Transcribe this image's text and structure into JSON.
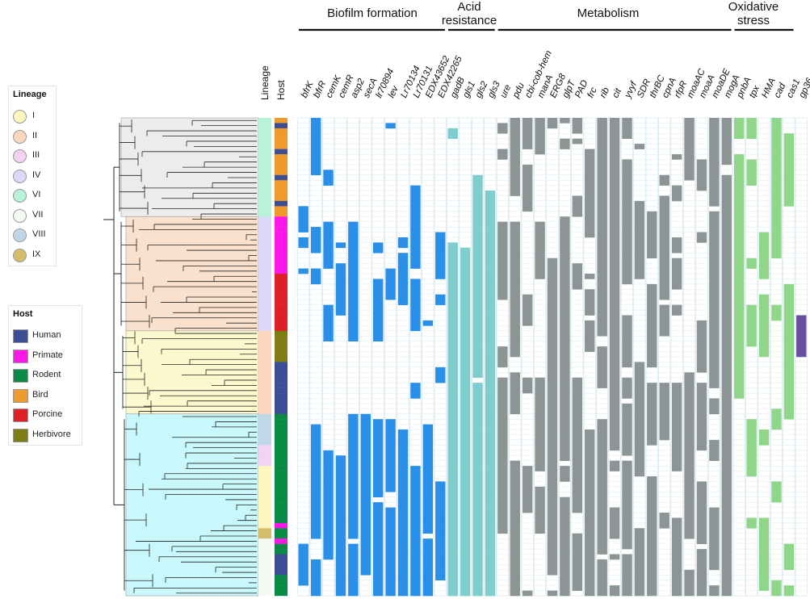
{
  "categories": [
    {
      "label": "Biofilm formation",
      "genes": [
        "bfrK",
        "bfrR",
        "cemK",
        "cemR",
        "asp2",
        "secA",
        "lr70894",
        "lev",
        "Lr70134",
        "Lr70131",
        "EDX43652",
        "EDX42265"
      ],
      "color": "#2a8fe8"
    },
    {
      "label": "Acid resistance",
      "genes": [
        "gadB",
        "gls1",
        "gls2",
        "gls3"
      ],
      "color": "#7fcdcc"
    },
    {
      "label": "Metabolism",
      "genes": [
        "ure",
        "pdu",
        "cbi-cob-hem",
        "manA",
        "ERG8",
        "glpT",
        "PAD",
        "frc",
        "rib",
        "cit",
        "yvyf",
        "SDR",
        "thrBC",
        "cpnA",
        "rfpR",
        "moaAC",
        "moaA",
        "moaDE",
        "mogA"
      ],
      "color": "#8c9594"
    },
    {
      "label": "Oxidative stress",
      "genes": [
        "pnbA",
        "tpx",
        "HMA",
        "cad",
        "cas1"
      ],
      "color": "#8fd68a"
    },
    {
      "label": "",
      "genes": [
        "gp36"
      ],
      "color": "#6a4f9e"
    }
  ],
  "column_headers": {
    "lineage": "Lineage",
    "host": "Host"
  },
  "legends": {
    "lineage": {
      "title": "Lineage",
      "items": [
        {
          "label": "I",
          "color": "#fdf6c0"
        },
        {
          "label": "II",
          "color": "#fbd6bd"
        },
        {
          "label": "III",
          "color": "#f3d2f2"
        },
        {
          "label": "IV",
          "color": "#dcd8f8"
        },
        {
          "label": "VI",
          "color": "#b8f2d8"
        },
        {
          "label": "VII",
          "color": "#f4f9f2"
        },
        {
          "label": "VIII",
          "color": "#bfd7e6"
        },
        {
          "label": "IX",
          "color": "#d6bd6e"
        }
      ]
    },
    "host": {
      "title": "Host",
      "items": [
        {
          "label": "Human",
          "color": "#3c4f96"
        },
        {
          "label": "Primate",
          "color": "#ff17e8"
        },
        {
          "label": "Rodent",
          "color": "#0a8a45"
        },
        {
          "label": "Bird",
          "color": "#ef9a2c"
        },
        {
          "label": "Porcine",
          "color": "#de1f26"
        },
        {
          "label": "Herbivore",
          "color": "#7e7d14"
        }
      ]
    }
  },
  "clades": [
    {
      "name": "clade-bird",
      "rows": 19,
      "color": "#ececec",
      "lineage_color": "#b8f2d8",
      "host_color": "#ef9a2c"
    },
    {
      "name": "clade-primate-porcine",
      "rows": 22,
      "color": "#f9e1cd",
      "lineage_color": "#dcd8f8",
      "host_color": "#ff17e8"
    },
    {
      "name": "clade-herbivore-human",
      "rows": 16,
      "color": "#fdf9cf",
      "lineage_color": "#fbd6bd",
      "host_color": "#3c4f96"
    },
    {
      "name": "clade-rodent",
      "rows": 35,
      "color": "#c8f8fb",
      "lineage_color": "#fdf6c0",
      "host_color": "#0a8a45"
    }
  ]
}
